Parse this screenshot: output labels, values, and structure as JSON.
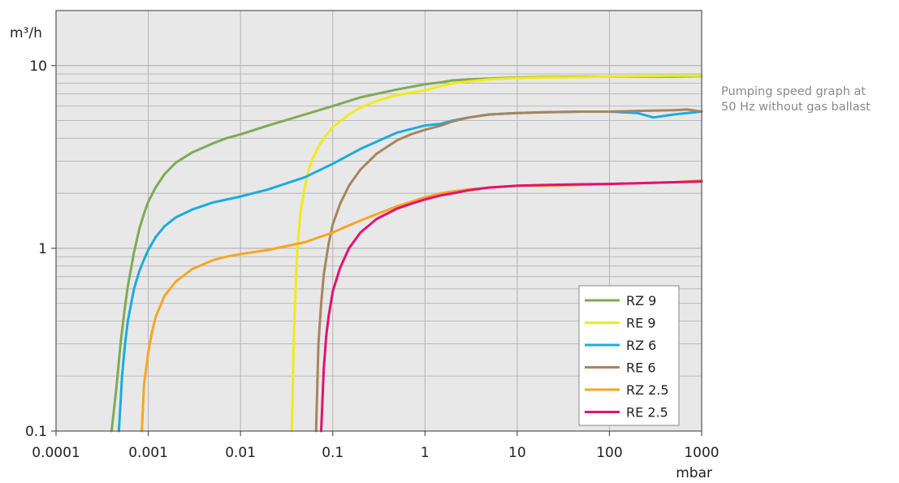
{
  "caption": {
    "line1": "Pumping speed graph at",
    "line2": "50 Hz without gas ballast"
  },
  "chart_data": {
    "type": "line",
    "xscale": "log",
    "yscale": "log",
    "xlim": [
      0.0001,
      1000
    ],
    "ylim": [
      0.1,
      20
    ],
    "xlabel": "mbar",
    "ylabel": "m³/h",
    "x_ticks": [
      {
        "value": 0.0001,
        "label": "0.0001"
      },
      {
        "value": 0.001,
        "label": "0.001"
      },
      {
        "value": 0.01,
        "label": "0.01"
      },
      {
        "value": 0.1,
        "label": "0.1"
      },
      {
        "value": 1,
        "label": "1"
      },
      {
        "value": 10,
        "label": "10"
      },
      {
        "value": 100,
        "label": "100"
      },
      {
        "value": 1000,
        "label": "1000"
      }
    ],
    "y_ticks": [
      {
        "value": 0.1,
        "label": "0.1"
      },
      {
        "value": 1,
        "label": "1"
      },
      {
        "value": 10,
        "label": "10"
      }
    ],
    "grid": true,
    "background": "#e8e8e8",
    "gridColor": "#b4b4b4",
    "legend_position": "bottom-right",
    "series": [
      {
        "name": "RZ 9",
        "color": "#7faa55",
        "x": [
          0.0004,
          0.00045,
          0.0005,
          0.00055,
          0.0006,
          0.0007,
          0.0008,
          0.0009,
          0.001,
          0.0012,
          0.0015,
          0.002,
          0.003,
          0.005,
          0.007,
          0.01,
          0.02,
          0.05,
          0.1,
          0.2,
          0.5,
          1,
          1.5,
          2,
          3,
          5,
          10,
          20,
          50,
          100,
          200,
          500,
          1000
        ],
        "y": [
          0.1,
          0.17,
          0.3,
          0.45,
          0.62,
          0.95,
          1.28,
          1.55,
          1.8,
          2.15,
          2.55,
          2.95,
          3.35,
          3.75,
          4.0,
          4.2,
          4.7,
          5.4,
          6.0,
          6.7,
          7.4,
          7.9,
          8.1,
          8.3,
          8.4,
          8.5,
          8.6,
          8.65,
          8.7,
          8.7,
          8.7,
          8.7,
          8.75
        ]
      },
      {
        "name": "RE 9",
        "color": "#f2ea1a",
        "x": [
          0.036,
          0.038,
          0.04,
          0.042,
          0.045,
          0.05,
          0.055,
          0.06,
          0.07,
          0.08,
          0.1,
          0.15,
          0.2,
          0.3,
          0.5,
          0.7,
          1,
          1.3,
          1.6,
          2,
          3,
          5,
          10,
          20,
          50,
          100,
          200,
          500,
          1000
        ],
        "y": [
          0.1,
          0.35,
          0.7,
          1.1,
          1.6,
          2.2,
          2.7,
          3.05,
          3.6,
          4.0,
          4.6,
          5.4,
          5.9,
          6.4,
          6.9,
          7.1,
          7.3,
          7.6,
          7.8,
          8.0,
          8.2,
          8.4,
          8.55,
          8.6,
          8.65,
          8.7,
          8.75,
          8.8,
          8.8
        ]
      },
      {
        "name": "RZ 6",
        "color": "#1aabe0",
        "x": [
          0.00048,
          0.00052,
          0.00056,
          0.0006,
          0.0007,
          0.0008,
          0.0009,
          0.001,
          0.0012,
          0.0015,
          0.002,
          0.003,
          0.005,
          0.01,
          0.02,
          0.05,
          0.1,
          0.2,
          0.5,
          1,
          1.5,
          2,
          3,
          5,
          10,
          20,
          50,
          100,
          200,
          300,
          500,
          1000
        ],
        "y": [
          0.1,
          0.2,
          0.3,
          0.4,
          0.6,
          0.75,
          0.87,
          0.98,
          1.15,
          1.32,
          1.48,
          1.63,
          1.78,
          1.92,
          2.1,
          2.45,
          2.9,
          3.5,
          4.3,
          4.7,
          4.8,
          5.0,
          5.2,
          5.4,
          5.5,
          5.55,
          5.6,
          5.6,
          5.5,
          5.2,
          5.4,
          5.6
        ]
      },
      {
        "name": "RE 6",
        "color": "#a8855e",
        "x": [
          0.066,
          0.07,
          0.075,
          0.08,
          0.09,
          0.1,
          0.12,
          0.15,
          0.2,
          0.3,
          0.5,
          0.7,
          1,
          1.5,
          2,
          3,
          5,
          10,
          20,
          50,
          100,
          200,
          500,
          700,
          1000
        ],
        "y": [
          0.1,
          0.3,
          0.5,
          0.72,
          1.05,
          1.35,
          1.75,
          2.2,
          2.7,
          3.3,
          3.9,
          4.2,
          4.45,
          4.7,
          4.95,
          5.2,
          5.4,
          5.5,
          5.55,
          5.6,
          5.6,
          5.65,
          5.7,
          5.75,
          5.6
        ]
      },
      {
        "name": "RZ 2.5",
        "color": "#f6a623",
        "x": [
          0.00085,
          0.0009,
          0.001,
          0.0011,
          0.0012,
          0.0015,
          0.002,
          0.003,
          0.005,
          0.007,
          0.01,
          0.02,
          0.05,
          0.1,
          0.2,
          0.5,
          1,
          1.5,
          2,
          3,
          5,
          10,
          20,
          50,
          100,
          200,
          500,
          1000
        ],
        "y": [
          0.1,
          0.18,
          0.27,
          0.35,
          0.42,
          0.55,
          0.66,
          0.77,
          0.86,
          0.9,
          0.93,
          0.98,
          1.08,
          1.22,
          1.42,
          1.7,
          1.9,
          2.0,
          2.05,
          2.1,
          2.15,
          2.2,
          2.2,
          2.22,
          2.25,
          2.27,
          2.3,
          2.35
        ]
      },
      {
        "name": "RE 2.5",
        "color": "#e3126f",
        "x": [
          0.075,
          0.08,
          0.085,
          0.09,
          0.1,
          0.12,
          0.15,
          0.2,
          0.3,
          0.5,
          0.7,
          1,
          1.5,
          2,
          3,
          5,
          10,
          20,
          50,
          100,
          200,
          500,
          1000
        ],
        "y": [
          0.1,
          0.22,
          0.33,
          0.42,
          0.58,
          0.78,
          1.0,
          1.22,
          1.45,
          1.65,
          1.75,
          1.85,
          1.95,
          2.0,
          2.08,
          2.15,
          2.2,
          2.22,
          2.24,
          2.25,
          2.27,
          2.3,
          2.32
        ]
      }
    ]
  }
}
